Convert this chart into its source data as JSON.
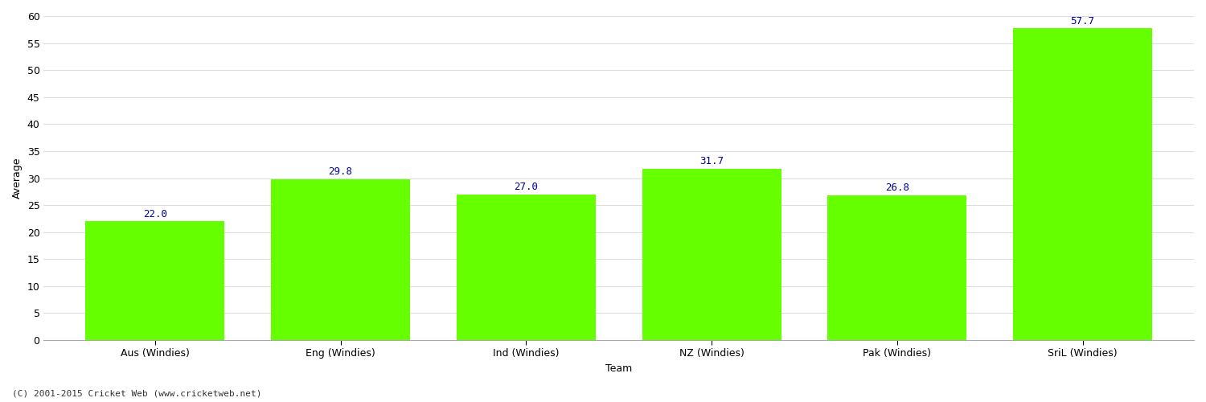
{
  "categories": [
    "Aus (Windies)",
    "Eng (Windies)",
    "Ind (Windies)",
    "NZ (Windies)",
    "Pak (Windies)",
    "SriL (Windies)"
  ],
  "values": [
    22.0,
    29.8,
    27.0,
    31.7,
    26.8,
    57.7
  ],
  "bar_color": "#66FF00",
  "bar_edge_color": "#66FF00",
  "label_color": "#000099",
  "xlabel": "Team",
  "ylabel": "Average",
  "ylim": [
    0,
    60
  ],
  "yticks": [
    0,
    5,
    10,
    15,
    20,
    25,
    30,
    35,
    40,
    45,
    50,
    55,
    60
  ],
  "background_color": "#ffffff",
  "plot_bg_color": "#ffffff",
  "grid_color": "#dddddd",
  "footer": "(C) 2001-2015 Cricket Web (www.cricketweb.net)",
  "label_fontsize": 9,
  "axis_fontsize": 9,
  "tick_fontsize": 9,
  "footer_fontsize": 8,
  "bar_width": 0.75
}
